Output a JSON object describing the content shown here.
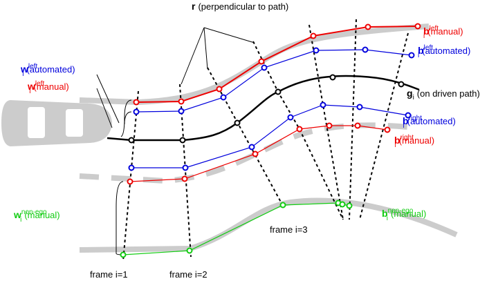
{
  "labels": {
    "r": {
      "base": "r",
      "note": "(perpendicular to path)"
    },
    "b_left_manual": {
      "base": "b",
      "sub": "i",
      "sup": "left",
      "note": "(manual)"
    },
    "b_left_auto": {
      "base": "b",
      "sub": "i",
      "sup": "left",
      "note": "(automated)"
    },
    "g": {
      "base": "g",
      "sub": "i",
      "note": "(on driven path)"
    },
    "b_right_auto": {
      "base": "b",
      "sub": "i",
      "sup": "right",
      "note": "(automated)"
    },
    "b_right_manual": {
      "base": "b",
      "sub": "i",
      "sup": "right",
      "note": "(manual)"
    },
    "b_nonego": {
      "base": "b",
      "sub": "i",
      "sup": "non-ego",
      "note": "(manual)"
    },
    "w_left_auto": {
      "base": "w",
      "sub": "i",
      "sup": "left",
      "note": "(automated)"
    },
    "w_left_manual": {
      "base": "w",
      "sub": "i",
      "sup": "left",
      "note": "(manual)"
    },
    "w_nonego": {
      "base": "w",
      "sub": "i",
      "sup": "non-ego",
      "note": "(manual)"
    },
    "frame1": {
      "note": "frame i=1"
    },
    "frame2": {
      "note": "frame i=2"
    },
    "frame3": {
      "note": "frame i=3"
    }
  }
}
